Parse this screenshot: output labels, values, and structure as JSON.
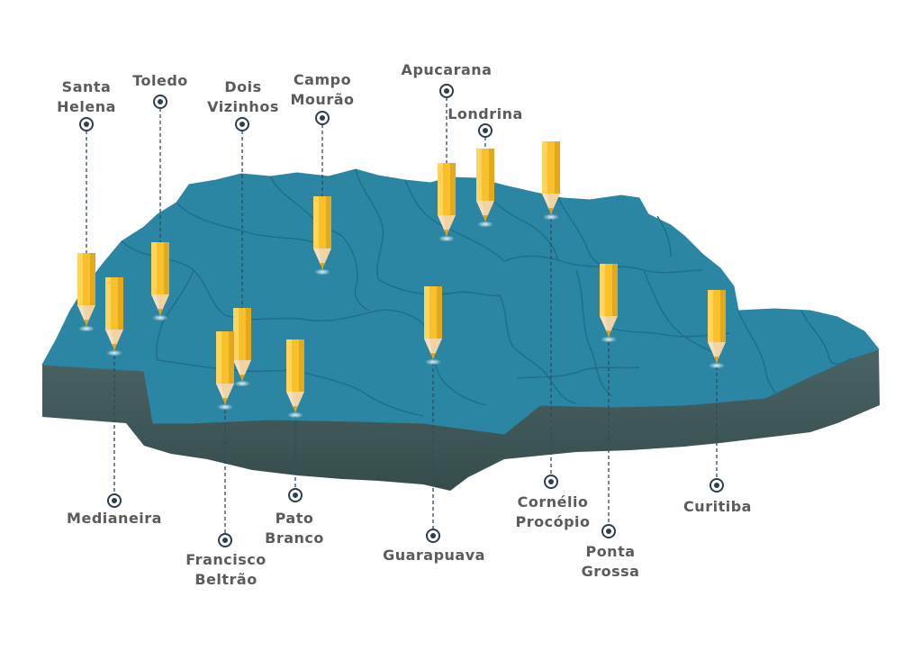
{
  "map": {
    "colors": {
      "land_top": "#2a86a2",
      "land_side": "#3d5655",
      "border": "#1f6e87",
      "pencil_body": "#f8c02b",
      "pencil_body_shade": "#e3a81b",
      "pencil_wood": "#f2d3a6",
      "pencil_tip": "#e6a317",
      "label": "#5b5b5b",
      "marker": "#2c3e50"
    },
    "icons": {
      "pin": "pencil-icon",
      "marker": "target-marker-icon"
    }
  },
  "cities": [
    {
      "id": "santa-helena",
      "lines": [
        "Santa",
        "Helena"
      ]
    },
    {
      "id": "toledo",
      "lines": [
        "Toledo"
      ]
    },
    {
      "id": "dois-vizinhos",
      "lines": [
        "Dois",
        "Vizinhos"
      ]
    },
    {
      "id": "campo-mourao",
      "lines": [
        "Campo",
        "Mourão"
      ]
    },
    {
      "id": "apucarana",
      "lines": [
        "Apucarana"
      ]
    },
    {
      "id": "londrina",
      "lines": [
        "Londrina"
      ]
    },
    {
      "id": "medianeira",
      "lines": [
        "Medianeira"
      ]
    },
    {
      "id": "francisco-beltrao",
      "lines": [
        "Francisco",
        "Beltrão"
      ]
    },
    {
      "id": "pato-branco",
      "lines": [
        "Pato",
        "Branco"
      ]
    },
    {
      "id": "guarapuava",
      "lines": [
        "Guarapuava"
      ]
    },
    {
      "id": "cornelio-procopio",
      "lines": [
        "Cornélio",
        "Procópio"
      ]
    },
    {
      "id": "ponta-grossa",
      "lines": [
        "Ponta",
        "Grossa"
      ]
    },
    {
      "id": "curitiba",
      "lines": [
        "Curitiba"
      ]
    }
  ]
}
